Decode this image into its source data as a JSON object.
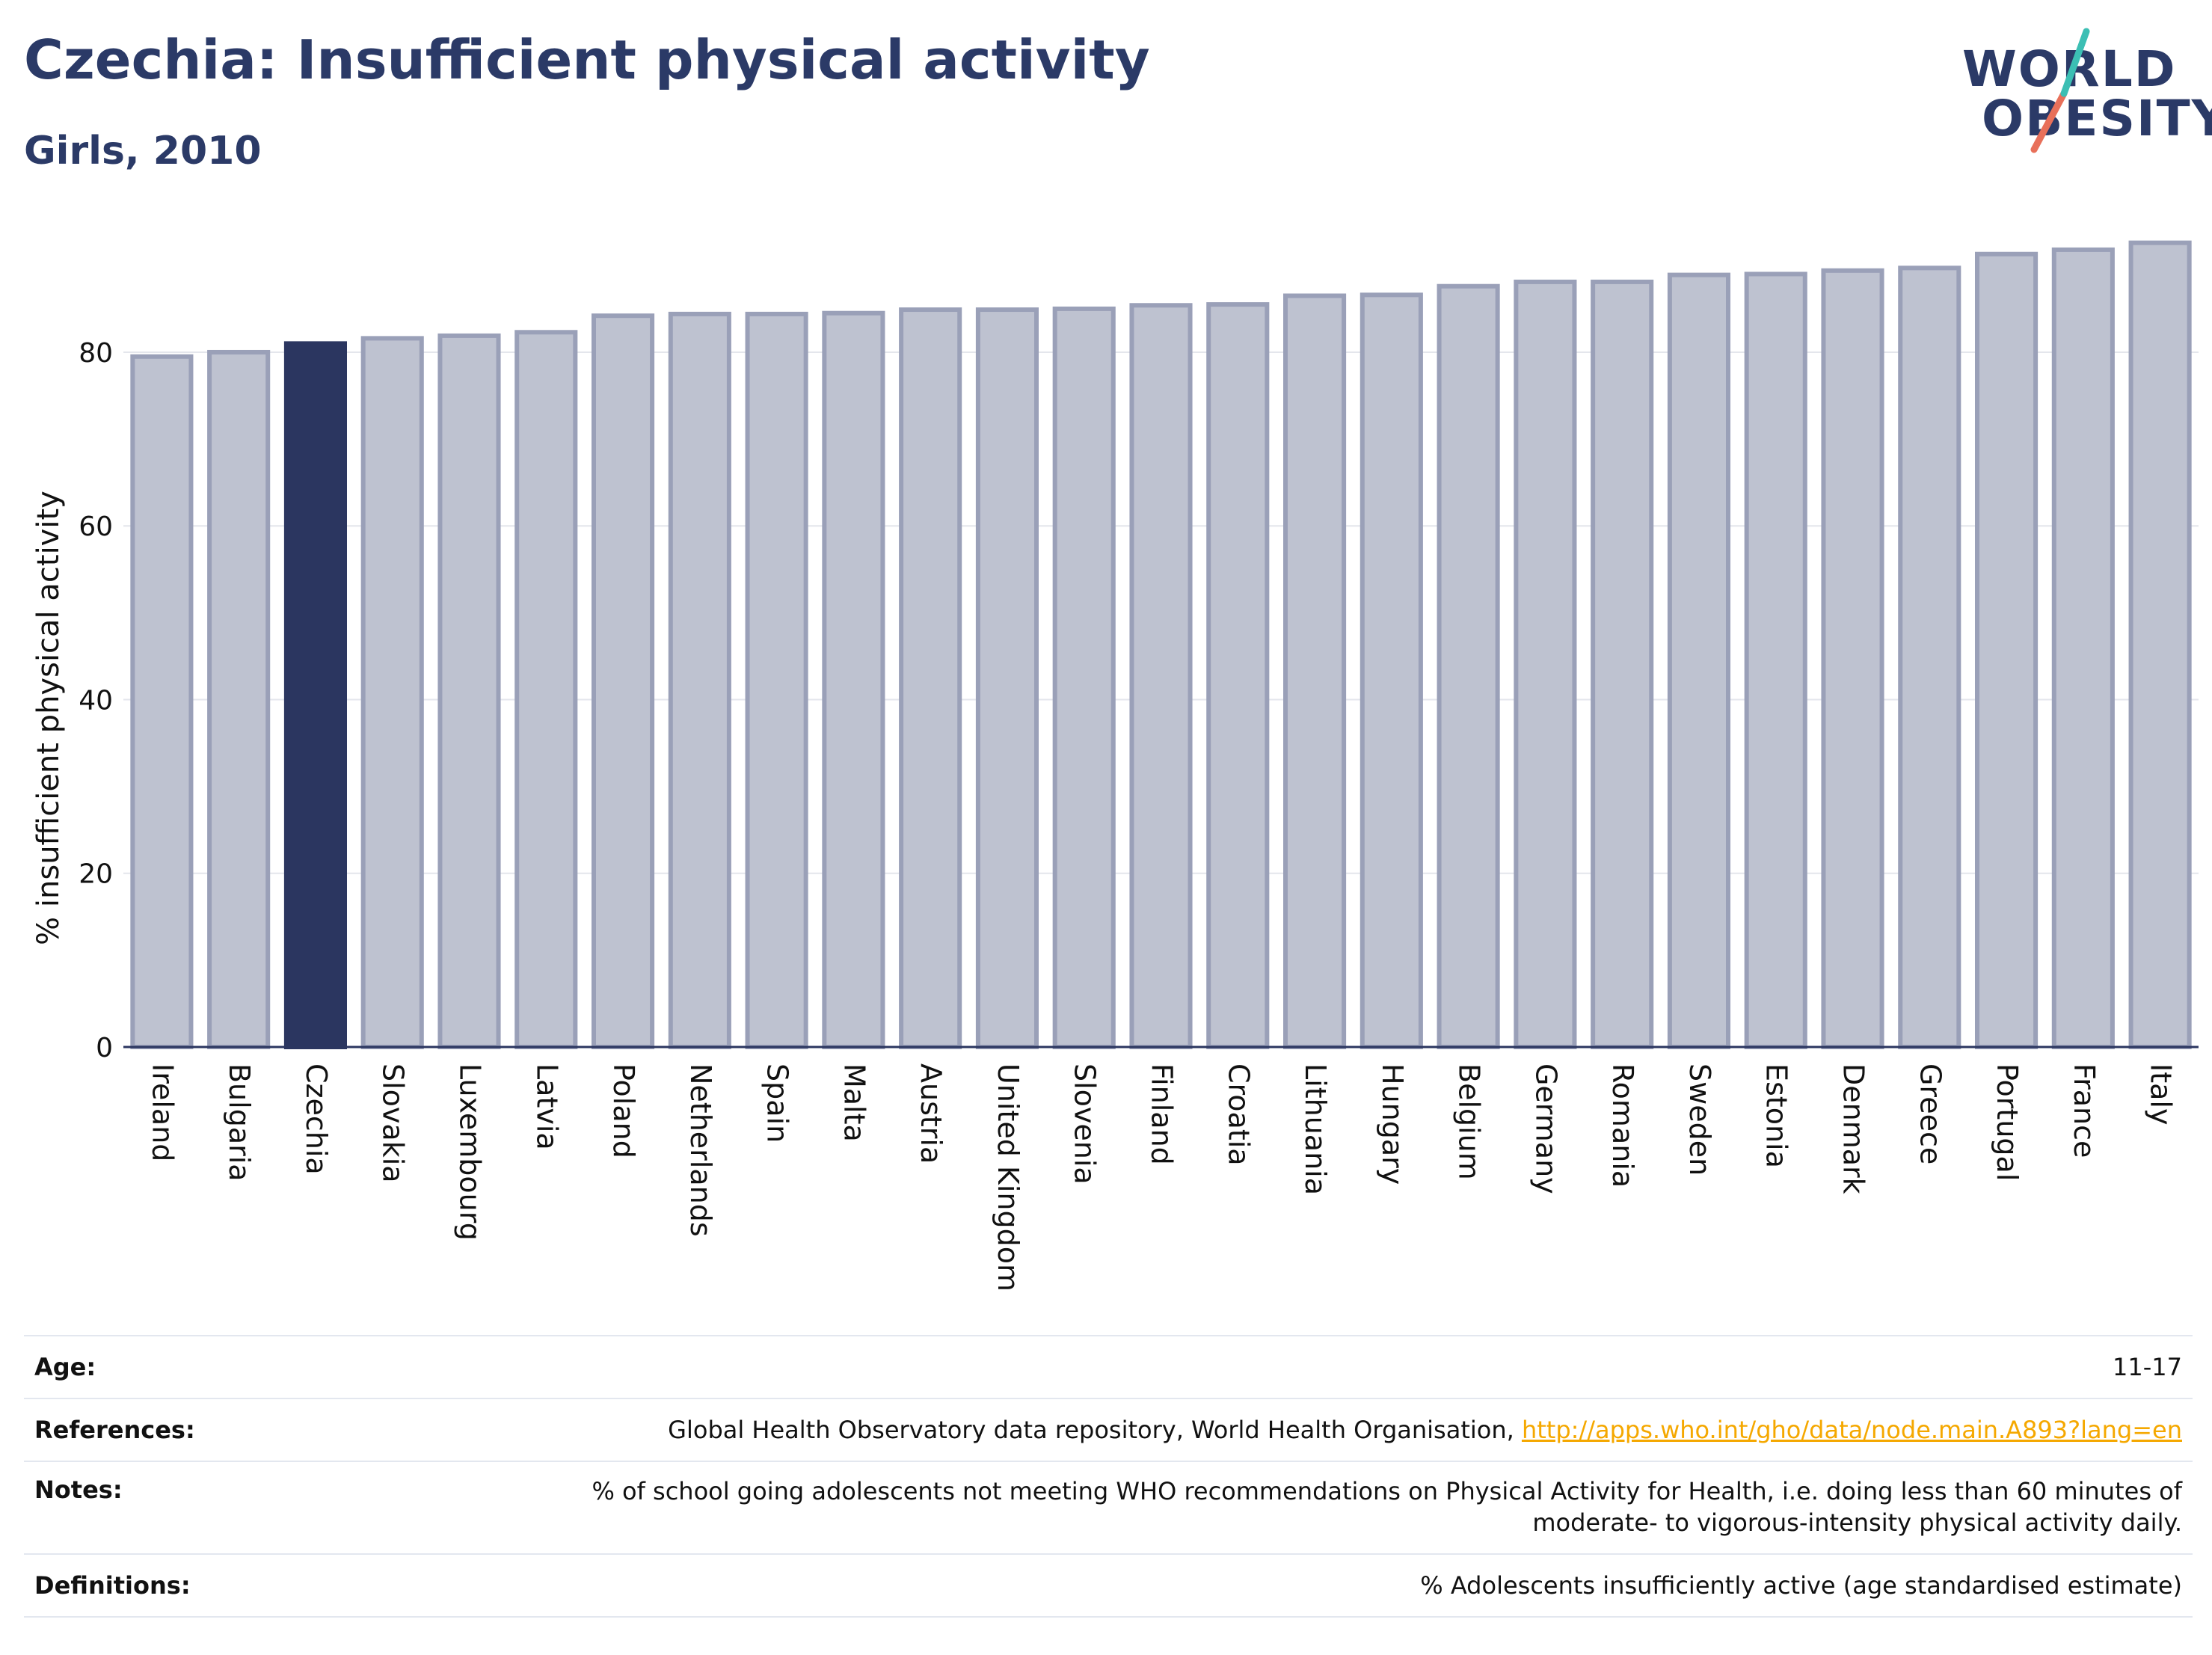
{
  "header": {
    "title": "Czechia: Insufficient physical activity",
    "subtitle": "Girls, 2010"
  },
  "logo": {
    "line1": "WORLD",
    "line2": "OBESITY"
  },
  "chart_data": {
    "type": "bar",
    "title": "Czechia: Insufficient physical activity",
    "subtitle": "Girls, 2010",
    "xlabel": "",
    "ylabel": "% insufficient physical activity",
    "ylim": [
      0,
      93
    ],
    "yticks": [
      0,
      20,
      40,
      60,
      80
    ],
    "grid": true,
    "highlight": "Czechia",
    "categories": [
      "Ireland",
      "Bulgaria",
      "Czechia",
      "Slovakia",
      "Luxembourg",
      "Latvia",
      "Poland",
      "Netherlands",
      "Spain",
      "Malta",
      "Austria",
      "United Kingdom",
      "Slovenia",
      "Finland",
      "Croatia",
      "Lithuania",
      "Hungary",
      "Belgium",
      "Germany",
      "Romania",
      "Sweden",
      "Estonia",
      "Denmark",
      "Greece",
      "Portugal",
      "France",
      "Italy"
    ],
    "values": [
      79.5,
      80.0,
      81.0,
      81.6,
      81.9,
      82.3,
      84.2,
      84.4,
      84.4,
      84.5,
      84.9,
      84.9,
      85.0,
      85.4,
      85.5,
      86.5,
      86.6,
      87.6,
      88.1,
      88.1,
      88.9,
      89.0,
      89.4,
      89.7,
      91.3,
      91.8,
      92.6
    ],
    "colors": {
      "bar": "#bec2d0",
      "bar_edge": "#9aa0b8",
      "highlight": "#2b3660"
    }
  },
  "info": {
    "age_label": "Age:",
    "age_value": "11-17",
    "references_label": "References:",
    "references_text": "Global Health Observatory data repository, World Health Organisation, ",
    "references_link": "http://apps.who.int/gho/data/node.main.A893?lang=en",
    "notes_label": "Notes:",
    "notes_line1": "% of school going adolescents not meeting WHO recommendations on Physical Activity for Health, i.e. doing less than 60 minutes of",
    "notes_line2": "moderate- to vigorous-intensity physical activity daily.",
    "definitions_label": "Definitions:",
    "definitions_value": "% Adolescents insufficiently active (age standardised estimate)"
  }
}
